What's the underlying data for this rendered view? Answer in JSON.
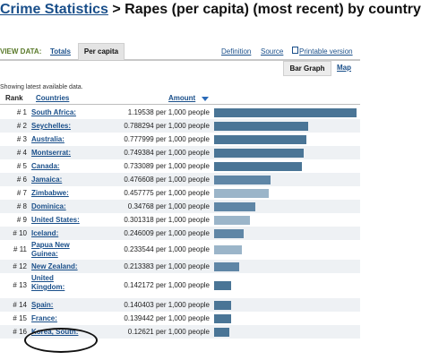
{
  "title": {
    "link": "Crime Statistics",
    "rest": "> Rapes (per capita) (most recent) by country"
  },
  "view": {
    "label": "VIEW DATA:",
    "tabs": [
      "Totals",
      "Per capita"
    ],
    "links": [
      "Definition",
      "Source",
      "Printable version"
    ]
  },
  "subtabs": [
    "Bar Graph",
    "Map"
  ],
  "note": "Showing latest available data.",
  "headers": {
    "rank": "Rank",
    "country": "Countries",
    "amount": "Amount"
  },
  "colors": {
    "bar_dark": "#4a7596",
    "bar_light": "#9bb5c9",
    "link": "#1a4f8a"
  },
  "rows": [
    {
      "rank": "# 1",
      "country": "South Africa",
      "amount": "1.19538 per 1,000 people",
      "value": 1.19538
    },
    {
      "rank": "# 2",
      "country": "Seychelles",
      "amount": "0.788294 per 1,000 people",
      "value": 0.788294
    },
    {
      "rank": "# 3",
      "country": "Australia",
      "amount": "0.777999 per 1,000 people",
      "value": 0.777999
    },
    {
      "rank": "# 4",
      "country": "Montserrat",
      "amount": "0.749384 per 1,000 people",
      "value": 0.749384
    },
    {
      "rank": "# 5",
      "country": "Canada",
      "amount": "0.733089 per 1,000 people",
      "value": 0.733089
    },
    {
      "rank": "# 6",
      "country": "Jamaica",
      "amount": "0.476608 per 1,000 people",
      "value": 0.476608
    },
    {
      "rank": "# 7",
      "country": "Zimbabwe",
      "amount": "0.457775 per 1,000 people",
      "value": 0.457775
    },
    {
      "rank": "# 8",
      "country": "Dominica",
      "amount": "0.34768 per 1,000 people",
      "value": 0.34768
    },
    {
      "rank": "# 9",
      "country": "United States",
      "amount": "0.301318 per 1,000 people",
      "value": 0.301318
    },
    {
      "rank": "# 10",
      "country": "Iceland",
      "amount": "0.246009 per 1,000 people",
      "value": 0.246009
    },
    {
      "rank": "# 11",
      "country": "Papua New Guinea",
      "amount": "0.233544 per 1,000 people",
      "value": 0.233544
    },
    {
      "rank": "# 12",
      "country": "New Zealand",
      "amount": "0.213383 per 1,000 people",
      "value": 0.213383
    },
    {
      "rank": "# 13",
      "country": "United Kingdom",
      "amount": "0.142172 per 1,000 people",
      "value": 0.142172
    },
    {
      "rank": "# 14",
      "country": "Spain",
      "amount": "0.140403 per 1,000 people",
      "value": 0.140403
    },
    {
      "rank": "# 15",
      "country": "France",
      "amount": "0.139442 per 1,000 people",
      "value": 0.139442
    },
    {
      "rank": "# 16",
      "country": "Korea, South",
      "amount": "0.12621 per 1,000 people",
      "value": 0.12621
    }
  ]
}
